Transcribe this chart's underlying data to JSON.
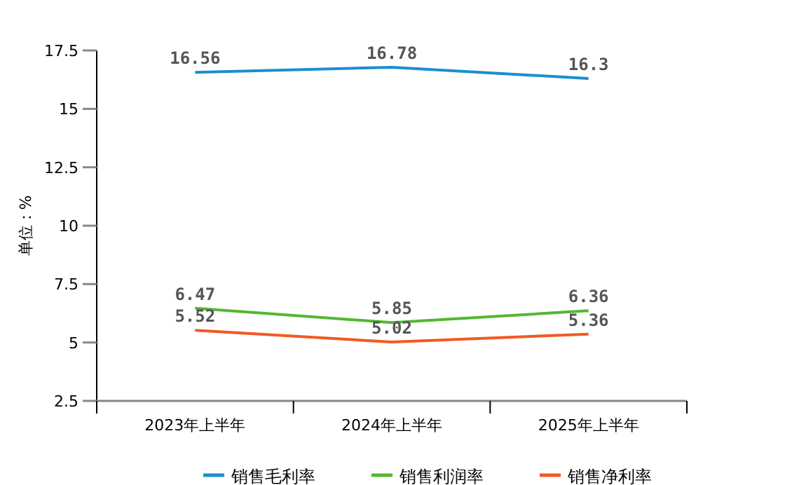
{
  "chart_data": {
    "type": "line",
    "ylabel": "单位：%",
    "categories": [
      "2023年上半年",
      "2024年上半年",
      "2025年上半年"
    ],
    "series": [
      {
        "name": "销售毛利率",
        "color": "#1a8fcf",
        "values": [
          16.56,
          16.78,
          16.3
        ]
      },
      {
        "name": "销售利润率",
        "color": "#52b832",
        "values": [
          6.47,
          5.85,
          6.36
        ]
      },
      {
        "name": "销售净利率",
        "color": "#f25a22",
        "values": [
          5.52,
          5.02,
          5.36
        ]
      }
    ],
    "ylim": [
      2.5,
      17.5
    ],
    "yticks": [
      2.5,
      5,
      7.5,
      10,
      12.5,
      15,
      17.5
    ],
    "data_labels": true,
    "legend": "bottom",
    "grid": false,
    "marker": "none"
  }
}
